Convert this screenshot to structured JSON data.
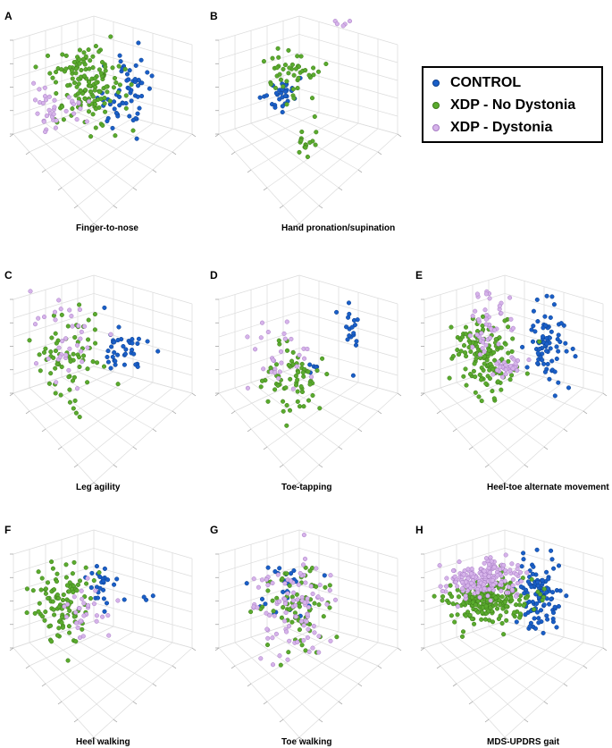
{
  "colors": {
    "control": "#1a5fc8",
    "control_edge": "#0d3f8c",
    "no_dystonia": "#5aab2e",
    "no_dystonia_edge": "#3d7a1a",
    "dystonia": "#d6b3ea",
    "dystonia_edge": "#a77cc4"
  },
  "legend": {
    "items": [
      {
        "key": "control",
        "label": "CONTROL"
      },
      {
        "key": "no_dystonia",
        "label": "XDP - No Dystonia"
      },
      {
        "key": "dystonia",
        "label": "XDP - Dystonia"
      }
    ]
  },
  "chart_data": [
    {
      "type": "scatter",
      "letter": "A",
      "title": "Finger-to-nose",
      "axes_ticks": "none",
      "series": [
        {
          "name": "CONTROL",
          "clusters": [
            {
              "cx": 0.62,
              "cy": 0.48,
              "sx": 0.07,
              "sy": 0.13,
              "n": 60
            }
          ]
        },
        {
          "name": "XDP - No Dystonia",
          "clusters": [
            {
              "cx": 0.39,
              "cy": 0.41,
              "sx": 0.1,
              "sy": 0.12,
              "n": 150
            }
          ]
        },
        {
          "name": "XDP - Dystonia",
          "clusters": [
            {
              "cx": 0.19,
              "cy": 0.57,
              "sx": 0.05,
              "sy": 0.07,
              "n": 25
            },
            {
              "cx": 0.33,
              "cy": 0.55,
              "sx": 0.04,
              "sy": 0.05,
              "n": 12
            }
          ]
        }
      ]
    },
    {
      "type": "scatter",
      "letter": "B",
      "title": "Hand pronation/supination",
      "axes_ticks": "none",
      "series": [
        {
          "name": "CONTROL",
          "clusters": [
            {
              "cx": 0.33,
              "cy": 0.47,
              "sx": 0.05,
              "sy": 0.06,
              "n": 30
            }
          ]
        },
        {
          "name": "XDP - No Dystonia",
          "clusters": [
            {
              "cx": 0.38,
              "cy": 0.33,
              "sx": 0.08,
              "sy": 0.07,
              "n": 45
            },
            {
              "cx": 0.48,
              "cy": 0.75,
              "sx": 0.03,
              "sy": 0.05,
              "n": 16
            }
          ]
        },
        {
          "name": "XDP - Dystonia",
          "clusters": [
            {
              "cx": 0.69,
              "cy": 0.03,
              "sx": 0.015,
              "sy": 0.025,
              "n": 5
            }
          ]
        }
      ]
    },
    {
      "type": "scatter",
      "letter": "C",
      "title": "Leg agility",
      "axes_ticks": "none",
      "series": [
        {
          "name": "CONTROL",
          "clusters": [
            {
              "cx": 0.62,
              "cy": 0.47,
              "sx": 0.08,
              "sy": 0.08,
              "n": 38
            }
          ]
        },
        {
          "name": "XDP - No Dystonia",
          "clusters": [
            {
              "cx": 0.3,
              "cy": 0.5,
              "sx": 0.09,
              "sy": 0.15,
              "n": 70
            }
          ]
        },
        {
          "name": "XDP - Dystonia",
          "clusters": [
            {
              "cx": 0.3,
              "cy": 0.42,
              "sx": 0.1,
              "sy": 0.13,
              "n": 35
            }
          ]
        }
      ]
    },
    {
      "type": "scatter",
      "letter": "D",
      "title": "Toe-tapping",
      "axes_ticks": "none",
      "series": [
        {
          "name": "CONTROL",
          "clusters": [
            {
              "cx": 0.73,
              "cy": 0.32,
              "sx": 0.03,
              "sy": 0.1,
              "n": 18
            },
            {
              "cx": 0.53,
              "cy": 0.56,
              "sx": 0.04,
              "sy": 0.03,
              "n": 5
            }
          ]
        },
        {
          "name": "XDP - No Dystonia",
          "clusters": [
            {
              "cx": 0.4,
              "cy": 0.63,
              "sx": 0.08,
              "sy": 0.1,
              "n": 65
            }
          ]
        },
        {
          "name": "XDP - Dystonia",
          "clusters": [
            {
              "cx": 0.35,
              "cy": 0.55,
              "sx": 0.12,
              "sy": 0.13,
              "n": 28
            }
          ]
        }
      ]
    },
    {
      "type": "scatter",
      "letter": "E",
      "title": "Heel-toe alternate movement",
      "axes_ticks": "none",
      "series": [
        {
          "name": "CONTROL",
          "clusters": [
            {
              "cx": 0.67,
              "cy": 0.41,
              "sx": 0.06,
              "sy": 0.13,
              "n": 75
            }
          ]
        },
        {
          "name": "XDP - No Dystonia",
          "clusters": [
            {
              "cx": 0.32,
              "cy": 0.47,
              "sx": 0.08,
              "sy": 0.13,
              "n": 140
            }
          ]
        },
        {
          "name": "XDP - Dystonia",
          "clusters": [
            {
              "cx": 0.36,
              "cy": 0.28,
              "sx": 0.06,
              "sy": 0.1,
              "n": 45
            },
            {
              "cx": 0.48,
              "cy": 0.56,
              "sx": 0.05,
              "sy": 0.03,
              "n": 30
            }
          ]
        }
      ]
    },
    {
      "type": "scatter",
      "letter": "F",
      "title": "Heel walking",
      "axes_ticks": "none",
      "series": [
        {
          "name": "CONTROL",
          "clusters": [
            {
              "cx": 0.48,
              "cy": 0.35,
              "sx": 0.06,
              "sy": 0.08,
              "n": 25
            },
            {
              "cx": 0.75,
              "cy": 0.41,
              "sx": 0.04,
              "sy": 0.01,
              "n": 3
            }
          ]
        },
        {
          "name": "XDP - No Dystonia",
          "clusters": [
            {
              "cx": 0.27,
              "cy": 0.45,
              "sx": 0.09,
              "sy": 0.12,
              "n": 110
            }
          ]
        },
        {
          "name": "XDP - Dystonia",
          "clusters": [
            {
              "cx": 0.38,
              "cy": 0.5,
              "sx": 0.06,
              "sy": 0.08,
              "n": 30
            }
          ]
        }
      ]
    },
    {
      "type": "scatter",
      "letter": "G",
      "title": "Toe walking",
      "axes_ticks": "none",
      "series": [
        {
          "name": "CONTROL",
          "clusters": [
            {
              "cx": 0.37,
              "cy": 0.34,
              "sx": 0.09,
              "sy": 0.1,
              "n": 28
            }
          ]
        },
        {
          "name": "XDP - No Dystonia",
          "clusters": [
            {
              "cx": 0.42,
              "cy": 0.47,
              "sx": 0.1,
              "sy": 0.15,
              "n": 75
            }
          ]
        },
        {
          "name": "XDP - Dystonia",
          "clusters": [
            {
              "cx": 0.41,
              "cy": 0.48,
              "sx": 0.12,
              "sy": 0.17,
              "n": 95
            }
          ]
        }
      ]
    },
    {
      "type": "scatter",
      "letter": "H",
      "title": "MDS-UPDRS gait",
      "axes_ticks": "none",
      "series": [
        {
          "name": "CONTROL",
          "clusters": [
            {
              "cx": 0.63,
              "cy": 0.39,
              "sx": 0.06,
              "sy": 0.11,
              "n": 110
            }
          ]
        },
        {
          "name": "XDP - No Dystonia",
          "clusters": [
            {
              "cx": 0.36,
              "cy": 0.43,
              "sx": 0.1,
              "sy": 0.07,
              "n": 230
            }
          ]
        },
        {
          "name": "XDP - Dystonia",
          "clusters": [
            {
              "cx": 0.33,
              "cy": 0.29,
              "sx": 0.1,
              "sy": 0.06,
              "n": 190
            }
          ]
        }
      ]
    }
  ]
}
